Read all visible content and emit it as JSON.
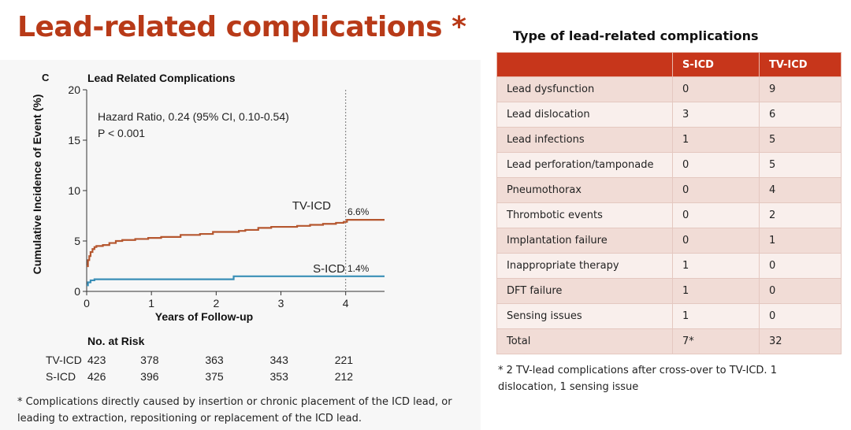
{
  "slide": {
    "title": "Lead-related complications *"
  },
  "chart_data": {
    "type": "line",
    "panel_label": "C",
    "title": "Lead Related Complications",
    "xlabel": "Years of Follow-up",
    "ylabel": "Cumulative Incidence of Event (%)",
    "xlim": [
      0,
      4.6
    ],
    "ylim": [
      0,
      20
    ],
    "xticks": [
      0,
      1,
      2,
      3,
      4
    ],
    "yticks": [
      0,
      5,
      10,
      15,
      20
    ],
    "reference_line_x": 4,
    "annotation": {
      "line1": "Hazard Ratio, 0.24 (95% CI, 0.10-0.54)",
      "line2": "P < 0.001"
    },
    "series": [
      {
        "name": "TV-ICD",
        "color": "#b5572f",
        "end_label": "6.6%",
        "x": [
          0,
          0.02,
          0.04,
          0.06,
          0.09,
          0.12,
          0.15,
          0.25,
          0.35,
          0.45,
          0.55,
          0.75,
          0.95,
          1.15,
          1.45,
          1.75,
          1.95,
          2.35,
          2.45,
          2.65,
          2.85,
          3.25,
          3.45,
          3.65,
          3.85,
          3.97,
          4.02,
          4.6
        ],
        "y": [
          2.5,
          3.1,
          3.5,
          3.9,
          4.2,
          4.4,
          4.5,
          4.6,
          4.8,
          5.0,
          5.1,
          5.2,
          5.3,
          5.4,
          5.6,
          5.7,
          5.9,
          6.0,
          6.1,
          6.3,
          6.4,
          6.5,
          6.6,
          6.7,
          6.8,
          6.9,
          7.1,
          7.1
        ],
        "risk_label": "TV-ICD",
        "at_risk": [
          423,
          378,
          363,
          343,
          221
        ]
      },
      {
        "name": "S-ICD",
        "color": "#3a8fb7",
        "end_label": "1.4%",
        "x": [
          0,
          0.02,
          0.06,
          0.12,
          2.25,
          2.27,
          4.6
        ],
        "y": [
          0.6,
          0.9,
          1.1,
          1.2,
          1.2,
          1.5,
          1.5
        ],
        "risk_label": "S-ICD",
        "at_risk": [
          426,
          396,
          375,
          353,
          212
        ]
      }
    ],
    "at_risk_title": "No. at Risk"
  },
  "footnote_left": "* Complications directly caused by insertion or chronic placement of the ICD lead, or leading to extraction, repositioning or replacement of the ICD lead.",
  "table": {
    "title": "Type of lead-related complications",
    "headers": [
      "",
      "S-ICD",
      "TV-ICD"
    ],
    "rows": [
      [
        "Lead dysfunction",
        "0",
        "9"
      ],
      [
        "Lead dislocation",
        "3",
        "6"
      ],
      [
        "Lead infections",
        "1",
        "5"
      ],
      [
        "Lead perforation/tamponade",
        "0",
        "5"
      ],
      [
        "Pneumothorax",
        "0",
        "4"
      ],
      [
        "Thrombotic events",
        "0",
        "2"
      ],
      [
        "Implantation failure",
        "0",
        "1"
      ],
      [
        "Inappropriate therapy",
        "1",
        "0"
      ],
      [
        "DFT failure",
        "1",
        "0"
      ],
      [
        "Sensing issues",
        "1",
        "0"
      ]
    ],
    "total": [
      "Total",
      "7*",
      "32"
    ],
    "header_color": "#c7361b"
  },
  "footnote_right": "* 2 TV-lead complications after cross-over to TV-ICD. 1 dislocation, 1 sensing issue"
}
